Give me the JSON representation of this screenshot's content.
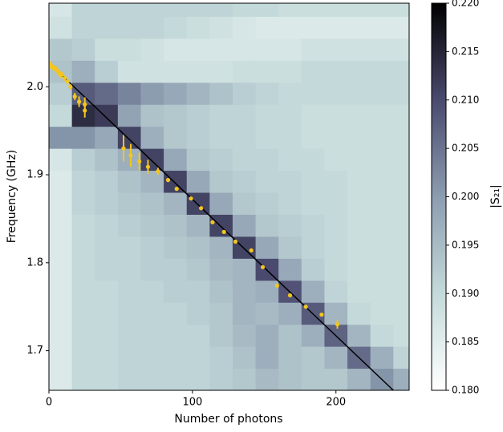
{
  "chart_data": {
    "type": "heatmap",
    "xlabel": "Number of photons",
    "ylabel": "Frequency (GHz)",
    "colorbar_label": "|S₂₁|",
    "xlim": [
      0,
      251
    ],
    "ylim": [
      1.655,
      2.095
    ],
    "xticks": [
      0,
      100,
      200
    ],
    "yticks": [
      {
        "value": 1.7,
        "label": "1.7"
      },
      {
        "value": 1.8,
        "label": "1.8"
      },
      {
        "value": 1.9,
        "label": "1.9"
      },
      {
        "value": 2,
        "label": "2.0"
      }
    ],
    "clim": [
      0.18,
      0.22
    ],
    "cticks": [
      {
        "value": 0.18,
        "label": "0.180"
      },
      {
        "value": 0.185,
        "label": "0.185"
      },
      {
        "value": 0.19,
        "label": "0.190"
      },
      {
        "value": 0.195,
        "label": "0.195"
      },
      {
        "value": 0.2,
        "label": "0.200"
      },
      {
        "value": 0.205,
        "label": "0.205"
      },
      {
        "value": 0.21,
        "label": "0.210"
      },
      {
        "value": 0.215,
        "label": "0.215"
      },
      {
        "value": 0.22,
        "label": "0.220"
      }
    ],
    "colormap": [
      "#ffffff",
      "#c4dada",
      "#8c9db0",
      "#4a4a6e",
      "#000000"
    ],
    "x_edges": [
      0,
      16,
      32,
      48,
      64,
      80,
      96,
      112,
      128,
      144,
      160,
      176,
      192,
      208,
      224,
      240,
      251
    ],
    "y_edges": [
      1.655,
      1.68,
      1.705,
      1.73,
      1.755,
      1.78,
      1.805,
      1.83,
      1.855,
      1.88,
      1.905,
      1.93,
      1.955,
      1.98,
      2.005,
      2.03,
      2.055,
      2.08,
      2.095
    ],
    "z": [
      [
        0.186,
        0.19,
        0.19,
        0.191,
        0.191,
        0.191,
        0.191,
        0.192,
        0.193,
        0.195,
        0.194,
        0.193,
        0.193,
        0.196,
        0.201,
        0.197
      ],
      [
        0.186,
        0.19,
        0.19,
        0.191,
        0.191,
        0.191,
        0.191,
        0.192,
        0.194,
        0.197,
        0.194,
        0.193,
        0.196,
        0.206,
        0.197,
        0.191
      ],
      [
        0.186,
        0.19,
        0.19,
        0.191,
        0.191,
        0.191,
        0.191,
        0.193,
        0.195,
        0.197,
        0.194,
        0.197,
        0.207,
        0.196,
        0.19,
        0.189
      ],
      [
        0.186,
        0.19,
        0.19,
        0.191,
        0.191,
        0.191,
        0.192,
        0.193,
        0.196,
        0.195,
        0.197,
        0.208,
        0.196,
        0.19,
        0.189,
        0.189
      ],
      [
        0.186,
        0.19,
        0.19,
        0.191,
        0.191,
        0.192,
        0.192,
        0.194,
        0.196,
        0.197,
        0.209,
        0.197,
        0.191,
        0.189,
        0.189,
        0.189
      ],
      [
        0.186,
        0.19,
        0.191,
        0.191,
        0.192,
        0.192,
        0.193,
        0.195,
        0.196,
        0.21,
        0.198,
        0.192,
        0.19,
        0.189,
        0.189,
        0.189
      ],
      [
        0.186,
        0.19,
        0.191,
        0.191,
        0.192,
        0.193,
        0.194,
        0.196,
        0.211,
        0.198,
        0.193,
        0.191,
        0.19,
        0.189,
        0.189,
        0.189
      ],
      [
        0.186,
        0.19,
        0.191,
        0.192,
        0.193,
        0.194,
        0.196,
        0.211,
        0.198,
        0.193,
        0.192,
        0.191,
        0.19,
        0.189,
        0.189,
        0.189
      ],
      [
        0.186,
        0.191,
        0.192,
        0.193,
        0.194,
        0.196,
        0.211,
        0.198,
        0.193,
        0.192,
        0.191,
        0.19,
        0.19,
        0.189,
        0.189,
        0.189
      ],
      [
        0.186,
        0.191,
        0.192,
        0.194,
        0.196,
        0.211,
        0.198,
        0.193,
        0.192,
        0.191,
        0.191,
        0.19,
        0.19,
        0.189,
        0.189,
        0.189
      ],
      [
        0.187,
        0.192,
        0.194,
        0.197,
        0.211,
        0.198,
        0.193,
        0.192,
        0.191,
        0.191,
        0.19,
        0.19,
        0.189,
        0.189,
        0.189,
        0.189
      ],
      [
        0.201,
        0.201,
        0.198,
        0.211,
        0.197,
        0.193,
        0.192,
        0.191,
        0.191,
        0.19,
        0.19,
        0.189,
        0.189,
        0.189,
        0.189,
        0.189
      ],
      [
        0.19,
        0.214,
        0.212,
        0.199,
        0.194,
        0.193,
        0.192,
        0.191,
        0.191,
        0.19,
        0.19,
        0.189,
        0.189,
        0.189,
        0.189,
        0.189
      ],
      [
        0.192,
        0.208,
        0.206,
        0.203,
        0.2,
        0.198,
        0.196,
        0.194,
        0.192,
        0.191,
        0.19,
        0.19,
        0.19,
        0.19,
        0.19,
        0.19
      ],
      [
        0.194,
        0.197,
        0.192,
        0.188,
        0.188,
        0.188,
        0.188,
        0.188,
        0.189,
        0.189,
        0.189,
        0.19,
        0.19,
        0.19,
        0.19,
        0.19
      ],
      [
        0.193,
        0.192,
        0.189,
        0.189,
        0.188,
        0.187,
        0.187,
        0.187,
        0.187,
        0.187,
        0.187,
        0.188,
        0.188,
        0.188,
        0.188,
        0.188
      ],
      [
        0.188,
        0.191,
        0.191,
        0.191,
        0.191,
        0.19,
        0.189,
        0.188,
        0.187,
        0.186,
        0.186,
        0.186,
        0.186,
        0.186,
        0.186,
        0.186
      ],
      [
        0.187,
        0.191,
        0.191,
        0.191,
        0.191,
        0.191,
        0.191,
        0.191,
        0.19,
        0.19,
        0.189,
        0.189,
        0.189,
        0.189,
        0.189,
        0.189
      ]
    ],
    "fit_line": {
      "color": "#000000",
      "x": [
        0,
        240
      ],
      "y": [
        2.027,
        1.655
      ]
    },
    "points": {
      "color": "#f2c61f",
      "x": [
        1,
        2,
        3,
        4,
        5,
        6,
        7,
        8,
        9,
        11,
        13,
        15,
        18,
        21,
        25,
        25,
        52,
        57,
        63,
        69,
        76,
        83,
        89,
        99,
        106,
        114,
        122,
        130,
        141,
        149,
        159,
        168,
        179,
        190,
        201
      ],
      "y": [
        2.025,
        2.023,
        2.022,
        2.021,
        2.02,
        2.018,
        2.016,
        2.013,
        2.014,
        2.01,
        2.006,
        2.0,
        1.989,
        1.983,
        1.98,
        1.973,
        1.93,
        1.922,
        1.915,
        1.909,
        1.904,
        1.894,
        1.884,
        1.873,
        1.862,
        1.846,
        1.835,
        1.824,
        1.814,
        1.795,
        1.774,
        1.763,
        1.75,
        1.741,
        1.73
      ],
      "errors": [
        0.004,
        0.003,
        0.003,
        0.003,
        0.003,
        0.003,
        0.003,
        0.003,
        0.003,
        0.003,
        0.003,
        0.003,
        0.004,
        0.006,
        0.008,
        0.008,
        0.015,
        0.013,
        0.01,
        0.008,
        0.004,
        0.002,
        0.002,
        0.002,
        0.002,
        0.002,
        0.002,
        0.002,
        0.002,
        0.002,
        0.002,
        0.002,
        0.002,
        0.002,
        0.005
      ]
    }
  }
}
